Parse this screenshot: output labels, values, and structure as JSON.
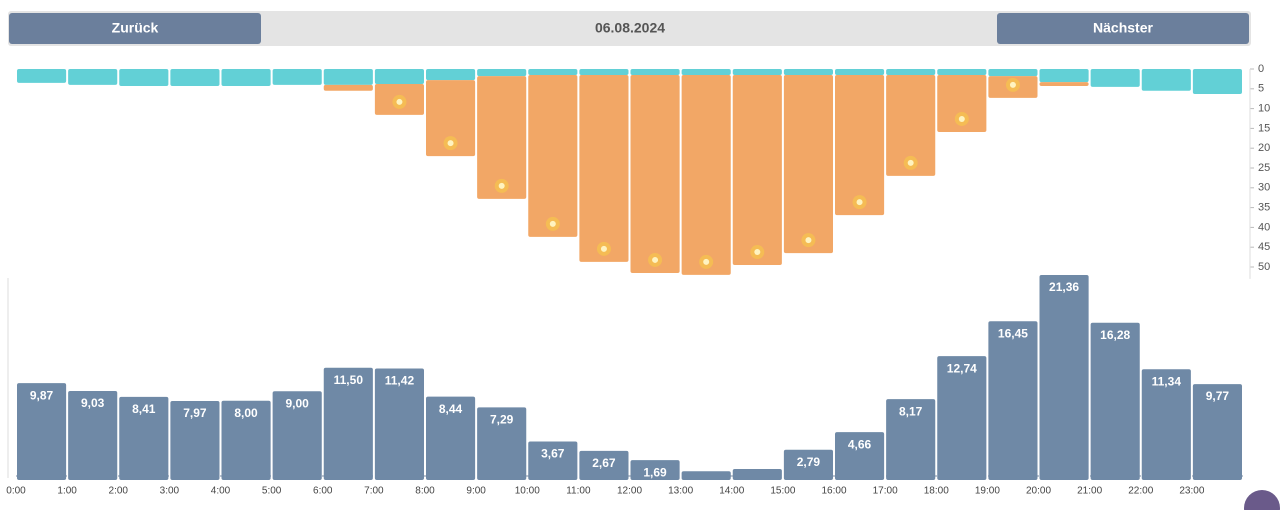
{
  "header": {
    "prev": "Zurück",
    "date": "06.08.2024",
    "next": "Nächster"
  },
  "chart_data": [
    {
      "type": "stacked-bar",
      "inverted": true,
      "categories": [
        "0:00",
        "1:00",
        "2:00",
        "3:00",
        "4:00",
        "5:00",
        "6:00",
        "7:00",
        "8:00",
        "9:00",
        "10:00",
        "11:00",
        "12:00",
        "13:00",
        "14:00",
        "15:00",
        "16:00",
        "17:00",
        "18:00",
        "19:00",
        "20:00",
        "21:00",
        "22:00",
        "23:00"
      ],
      "series": [
        {
          "color": "#62d0d6",
          "values": [
            3.5,
            4,
            4.3,
            4.3,
            4.3,
            4,
            4,
            3.8,
            2.8,
            1.8,
            1.5,
            1.5,
            1.5,
            1.5,
            1.5,
            1.5,
            1.5,
            1.5,
            1.5,
            1.8,
            3.3,
            4.5,
            5.5,
            6.3
          ]
        },
        {
          "color": "#f2a766",
          "values": [
            0,
            0,
            0,
            0,
            0,
            0,
            1.5,
            7.8,
            19.2,
            31,
            40.9,
            47.2,
            50,
            50.5,
            48,
            45,
            35.4,
            25.5,
            14.4,
            5.5,
            1,
            0,
            0,
            0
          ]
        }
      ],
      "ylim": [
        0,
        53
      ],
      "yticks": [
        0,
        5,
        10,
        15,
        20,
        25,
        30,
        35,
        40,
        45,
        50
      ]
    },
    {
      "type": "bar",
      "color": "#6f89a6",
      "categories": [
        "0:00",
        "1:00",
        "2:00",
        "3:00",
        "4:00",
        "5:00",
        "6:00",
        "7:00",
        "8:00",
        "9:00",
        "10:00",
        "11:00",
        "12:00",
        "13:00",
        "14:00",
        "15:00",
        "16:00",
        "17:00",
        "18:00",
        "19:00",
        "20:00",
        "21:00",
        "22:00",
        "23:00"
      ],
      "values": [
        9.87,
        9.03,
        8.41,
        7.97,
        8.0,
        9.0,
        11.5,
        11.42,
        8.44,
        7.29,
        3.67,
        2.67,
        1.69,
        0.5,
        0.75,
        2.79,
        4.66,
        8.17,
        12.74,
        16.45,
        21.36,
        16.28,
        11.34,
        9.77
      ],
      "value_labels": [
        "9,87",
        "9,03",
        "8,41",
        "7,97",
        "8,00",
        "9,00",
        "11,50",
        "11,42",
        "8,44",
        "7,29",
        "3,67",
        "2,67",
        "1,69",
        null,
        null,
        "2,79",
        "4,66",
        "8,17",
        "12,74",
        "16,45",
        "21,36",
        "16,28",
        "11,34",
        "9,77"
      ],
      "ylim": [
        0,
        21.5
      ]
    }
  ]
}
